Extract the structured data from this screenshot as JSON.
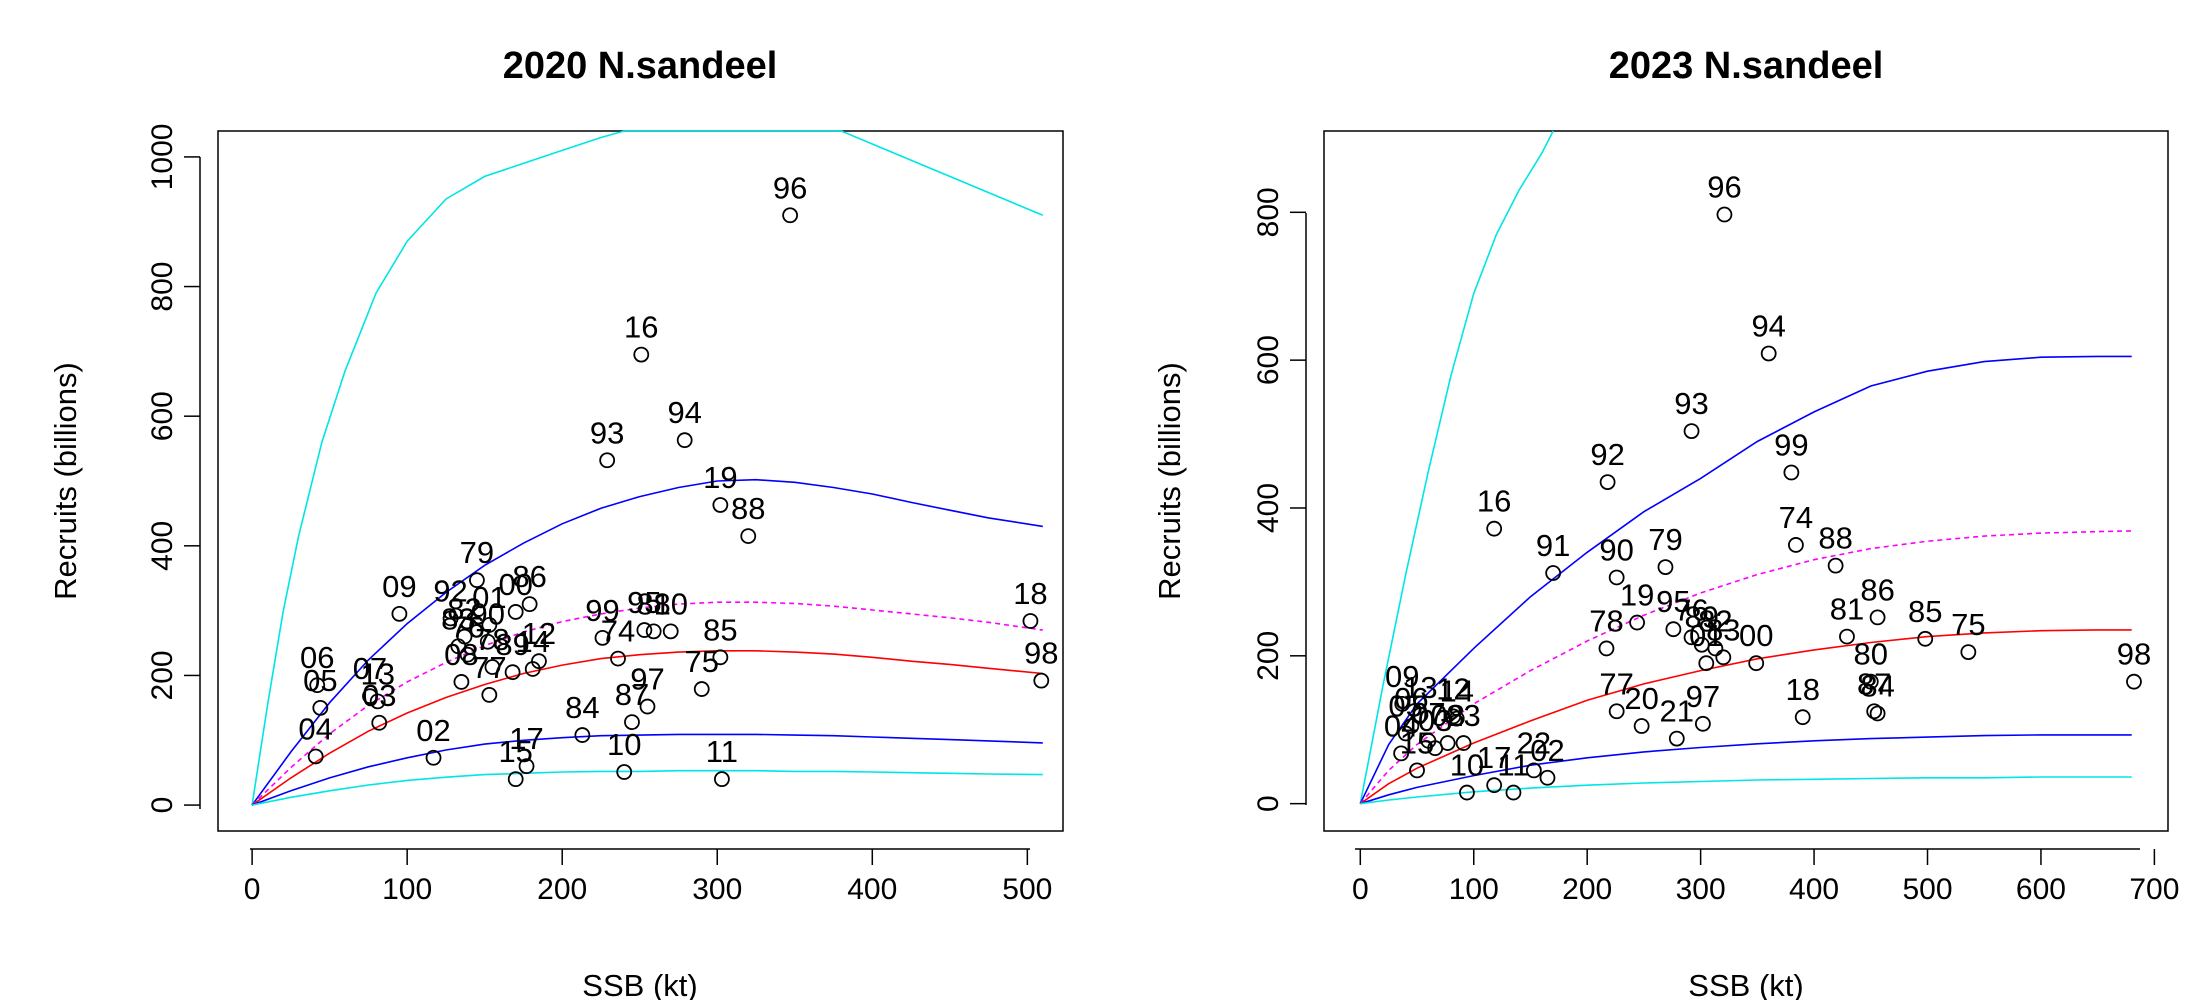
{
  "chart_data": [
    {
      "type": "scatter",
      "title": "2020 N.sandeel",
      "xlabel": "SSB (kt)",
      "ylabel": "Recruits (billions)",
      "xlim": [
        -22,
        523
      ],
      "ylim": [
        -40,
        1040
      ],
      "xticks": [
        0,
        100,
        200,
        300,
        400,
        500
      ],
      "yticks": [
        0,
        200,
        400,
        600,
        800,
        1000
      ],
      "grid": false,
      "legend": "none",
      "points": [
        {
          "label": "96",
          "x": 347,
          "y": 910
        },
        {
          "label": "16",
          "x": 251,
          "y": 695
        },
        {
          "label": "94",
          "x": 279,
          "y": 563
        },
        {
          "label": "93",
          "x": 229,
          "y": 532
        },
        {
          "label": "19",
          "x": 302,
          "y": 463
        },
        {
          "label": "88",
          "x": 320,
          "y": 415
        },
        {
          "label": "18",
          "x": 502,
          "y": 284
        },
        {
          "label": "98",
          "x": 509,
          "y": 192
        },
        {
          "label": "09",
          "x": 95,
          "y": 295
        },
        {
          "label": "92",
          "x": 128,
          "y": 288
        },
        {
          "label": "79",
          "x": 145,
          "y": 347
        },
        {
          "label": "86",
          "x": 179,
          "y": 310
        },
        {
          "label": "00",
          "x": 170,
          "y": 298
        },
        {
          "label": "82",
          "x": 137,
          "y": 260
        },
        {
          "label": "01",
          "x": 153,
          "y": 278
        },
        {
          "label": "90",
          "x": 152,
          "y": 252
        },
        {
          "label": "83",
          "x": 133,
          "y": 245
        },
        {
          "label": "76",
          "x": 139,
          "y": 232
        },
        {
          "label": "78",
          "x": 155,
          "y": 213
        },
        {
          "label": "12",
          "x": 185,
          "y": 222
        },
        {
          "label": "14",
          "x": 181,
          "y": 210
        },
        {
          "label": "08",
          "x": 135,
          "y": 190
        },
        {
          "label": "89",
          "x": 168,
          "y": 205
        },
        {
          "label": "77",
          "x": 153,
          "y": 170
        },
        {
          "label": "15",
          "x": 170,
          "y": 40
        },
        {
          "label": "17",
          "x": 177,
          "y": 60
        },
        {
          "label": "84",
          "x": 213,
          "y": 108
        },
        {
          "label": "10",
          "x": 240,
          "y": 51
        },
        {
          "label": "11",
          "x": 303,
          "y": 40
        },
        {
          "label": "99",
          "x": 226,
          "y": 258
        },
        {
          "label": "74",
          "x": 236,
          "y": 226
        },
        {
          "label": "95",
          "x": 253,
          "y": 270
        },
        {
          "label": "81",
          "x": 259,
          "y": 268
        },
        {
          "label": "80",
          "x": 270,
          "y": 268
        },
        {
          "label": "85",
          "x": 302,
          "y": 228
        },
        {
          "label": "75",
          "x": 290,
          "y": 179
        },
        {
          "label": "97",
          "x": 255,
          "y": 152
        },
        {
          "label": "87",
          "x": 245,
          "y": 128
        },
        {
          "label": "06",
          "x": 42,
          "y": 185
        },
        {
          "label": "05",
          "x": 44,
          "y": 150
        },
        {
          "label": "04",
          "x": 41,
          "y": 75
        },
        {
          "label": "07",
          "x": 76,
          "y": 168
        },
        {
          "label": "13",
          "x": 81,
          "y": 160
        },
        {
          "label": "03",
          "x": 82,
          "y": 127
        },
        {
          "label": "02",
          "x": 117,
          "y": 73
        }
      ],
      "series": [
        {
          "color": "#00e5e5",
          "dash": false,
          "x": [
            0,
            10,
            20,
            30,
            45,
            60,
            80,
            100,
            125,
            150,
            175,
            200,
            225,
            240,
            380,
            400,
            425,
            450,
            475,
            510
          ],
          "y": [
            0,
            155,
            298,
            415,
            560,
            670,
            790,
            870,
            935,
            970,
            990,
            1010,
            1030,
            1040,
            1040,
            1020,
            995,
            970,
            945,
            910
          ]
        },
        {
          "color": "#0000ff",
          "dash": false,
          "x": [
            0,
            25,
            50,
            75,
            100,
            125,
            150,
            175,
            200,
            225,
            250,
            275,
            300,
            325,
            350,
            375,
            400,
            425,
            450,
            475,
            510
          ],
          "y": [
            0,
            82,
            158,
            224,
            280,
            328,
            370,
            404,
            434,
            458,
            476,
            490,
            500,
            502,
            498,
            490,
            480,
            467,
            455,
            443,
            430
          ]
        },
        {
          "color": "#ff00ff",
          "dash": true,
          "x": [
            0,
            25,
            50,
            75,
            100,
            125,
            150,
            175,
            200,
            225,
            250,
            275,
            300,
            325,
            350,
            375,
            400,
            425,
            450,
            475,
            510
          ],
          "y": [
            0,
            58,
            110,
            154,
            190,
            220,
            246,
            267,
            283,
            295,
            304,
            310,
            313,
            313,
            311,
            307,
            301,
            295,
            289,
            282,
            270
          ]
        },
        {
          "color": "#ff0000",
          "dash": false,
          "x": [
            0,
            25,
            50,
            75,
            100,
            125,
            150,
            175,
            200,
            225,
            250,
            275,
            300,
            325,
            350,
            375,
            400,
            425,
            450,
            475,
            510
          ],
          "y": [
            0,
            42,
            80,
            114,
            142,
            166,
            186,
            203,
            216,
            226,
            232,
            236,
            238,
            238,
            236,
            233,
            228,
            222,
            217,
            211,
            203
          ]
        },
        {
          "color": "#0000ff",
          "dash": false,
          "x": [
            0,
            25,
            50,
            75,
            100,
            125,
            150,
            175,
            200,
            225,
            250,
            275,
            300,
            325,
            350,
            375,
            400,
            425,
            450,
            475,
            510
          ],
          "y": [
            0,
            22,
            42,
            59,
            73,
            85,
            94,
            100,
            104,
            107,
            108,
            109,
            109,
            109,
            108,
            107,
            105,
            103,
            101,
            99,
            96
          ]
        },
        {
          "color": "#00e5e5",
          "dash": false,
          "x": [
            0,
            25,
            50,
            75,
            100,
            125,
            150,
            175,
            200,
            225,
            250,
            275,
            300,
            325,
            350,
            375,
            400,
            425,
            450,
            475,
            510
          ],
          "y": [
            0,
            12,
            22,
            31,
            38,
            43,
            47,
            49,
            51,
            52,
            52,
            53,
            53,
            53,
            52,
            52,
            51,
            50,
            49,
            48,
            47
          ]
        }
      ]
    },
    {
      "type": "scatter",
      "title": "2023 N.sandeel",
      "xlabel": "SSB (kt)",
      "ylabel": "Recruits (billions)",
      "xlim": [
        -32,
        712
      ],
      "ylim": [
        -37,
        910
      ],
      "xticks": [
        0,
        100,
        200,
        300,
        400,
        500,
        600,
        700
      ],
      "yticks": [
        0,
        200,
        400,
        600,
        800
      ],
      "grid": false,
      "legend": "none",
      "points": [
        {
          "label": "96",
          "x": 321,
          "y": 797
        },
        {
          "label": "94",
          "x": 360,
          "y": 609
        },
        {
          "label": "93",
          "x": 292,
          "y": 504
        },
        {
          "label": "99",
          "x": 380,
          "y": 448
        },
        {
          "label": "92",
          "x": 218,
          "y": 435
        },
        {
          "label": "16",
          "x": 118,
          "y": 372
        },
        {
          "label": "91",
          "x": 170,
          "y": 312
        },
        {
          "label": "74",
          "x": 384,
          "y": 350
        },
        {
          "label": "88",
          "x": 419,
          "y": 322
        },
        {
          "label": "90",
          "x": 226,
          "y": 306
        },
        {
          "label": "79",
          "x": 269,
          "y": 320
        },
        {
          "label": "19",
          "x": 244,
          "y": 245
        },
        {
          "label": "95",
          "x": 276,
          "y": 236
        },
        {
          "label": "76",
          "x": 292,
          "y": 225
        },
        {
          "label": "89",
          "x": 301,
          "y": 215
        },
        {
          "label": "82",
          "x": 313,
          "y": 210
        },
        {
          "label": "00",
          "x": 349,
          "y": 190
        },
        {
          "label": "83",
          "x": 320,
          "y": 198
        },
        {
          "label": "01",
          "x": 305,
          "y": 190
        },
        {
          "label": "78",
          "x": 217,
          "y": 210
        },
        {
          "label": "86",
          "x": 456,
          "y": 252
        },
        {
          "label": "81",
          "x": 429,
          "y": 226
        },
        {
          "label": "85",
          "x": 498,
          "y": 223
        },
        {
          "label": "75",
          "x": 536,
          "y": 205
        },
        {
          "label": "80",
          "x": 450,
          "y": 165
        },
        {
          "label": "87",
          "x": 453,
          "y": 125
        },
        {
          "label": "84",
          "x": 456,
          "y": 122
        },
        {
          "label": "98",
          "x": 682,
          "y": 165
        },
        {
          "label": "18",
          "x": 390,
          "y": 117
        },
        {
          "label": "77",
          "x": 226,
          "y": 125
        },
        {
          "label": "20",
          "x": 248,
          "y": 105
        },
        {
          "label": "21",
          "x": 279,
          "y": 88
        },
        {
          "label": "97",
          "x": 302,
          "y": 108
        },
        {
          "label": "22",
          "x": 153,
          "y": 45
        },
        {
          "label": "02",
          "x": 165,
          "y": 35
        },
        {
          "label": "10",
          "x": 94,
          "y": 15
        },
        {
          "label": "11",
          "x": 135,
          "y": 15
        },
        {
          "label": "17",
          "x": 118,
          "y": 25
        },
        {
          "label": "14",
          "x": 85,
          "y": 115
        },
        {
          "label": "23",
          "x": 91,
          "y": 82
        },
        {
          "label": "09",
          "x": 37,
          "y": 135
        },
        {
          "label": "13",
          "x": 53,
          "y": 120
        },
        {
          "label": "12",
          "x": 82,
          "y": 118
        },
        {
          "label": "06",
          "x": 45,
          "y": 105
        },
        {
          "label": "05",
          "x": 40,
          "y": 95
        },
        {
          "label": "07",
          "x": 60,
          "y": 85
        },
        {
          "label": "08",
          "x": 77,
          "y": 82
        },
        {
          "label": "03",
          "x": 66,
          "y": 75
        },
        {
          "label": "04",
          "x": 36,
          "y": 68
        },
        {
          "label": "15",
          "x": 50,
          "y": 45
        }
      ],
      "series": [
        {
          "color": "#00e5e5",
          "dash": false,
          "x": [
            0,
            20,
            40,
            60,
            80,
            100,
            120,
            140,
            160,
            170
          ],
          "y": [
            0,
            160,
            310,
            450,
            580,
            690,
            770,
            830,
            880,
            910
          ]
        },
        {
          "color": "#0000ff",
          "dash": false,
          "x": [
            0,
            25,
            50,
            100,
            150,
            200,
            250,
            300,
            350,
            400,
            450,
            500,
            550,
            600,
            650,
            680
          ],
          "y": [
            0,
            80,
            135,
            210,
            280,
            340,
            395,
            440,
            490,
            530,
            565,
            585,
            598,
            604,
            605,
            605
          ]
        },
        {
          "color": "#ff00ff",
          "dash": true,
          "x": [
            0,
            25,
            50,
            100,
            150,
            200,
            250,
            300,
            350,
            400,
            450,
            500,
            550,
            600,
            650,
            680
          ],
          "y": [
            0,
            45,
            80,
            135,
            180,
            220,
            255,
            285,
            310,
            330,
            345,
            355,
            362,
            366,
            368,
            369
          ]
        },
        {
          "color": "#ff0000",
          "dash": false,
          "x": [
            0,
            25,
            50,
            100,
            150,
            200,
            250,
            300,
            350,
            400,
            450,
            500,
            550,
            600,
            650,
            680
          ],
          "y": [
            0,
            27,
            48,
            82,
            112,
            140,
            162,
            180,
            196,
            208,
            218,
            226,
            231,
            234,
            235,
            235
          ]
        },
        {
          "color": "#0000ff",
          "dash": false,
          "x": [
            0,
            25,
            50,
            100,
            150,
            200,
            250,
            300,
            350,
            400,
            450,
            500,
            550,
            600,
            650,
            680
          ],
          "y": [
            0,
            12,
            22,
            38,
            52,
            62,
            70,
            76,
            81,
            85,
            88,
            90,
            92,
            93,
            93,
            93
          ]
        },
        {
          "color": "#00e5e5",
          "dash": false,
          "x": [
            0,
            25,
            50,
            100,
            150,
            200,
            250,
            300,
            350,
            400,
            450,
            500,
            550,
            600,
            650,
            680
          ],
          "y": [
            0,
            5,
            9,
            16,
            21,
            25,
            28,
            30,
            32,
            33,
            34,
            35,
            35,
            36,
            36,
            36
          ]
        }
      ]
    }
  ]
}
